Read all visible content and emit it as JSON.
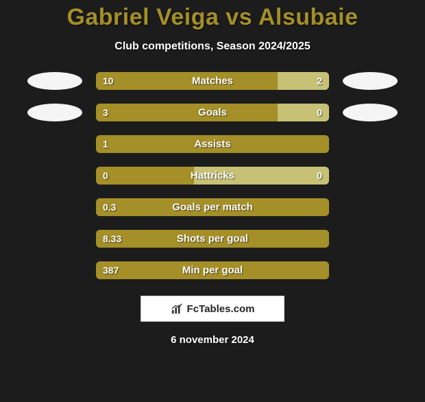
{
  "background_color": "#1c1c1c",
  "title": {
    "text": "Gabriel Veiga vs Alsubaie",
    "color": "#a48f28",
    "fontsize": 34,
    "fontweight": 800
  },
  "subtitle": {
    "text": "Club competitions, Season 2024/2025",
    "color": "#ffffff",
    "fontsize": 16
  },
  "bar_colors": {
    "left": "#a48f28",
    "right": "#c6c174"
  },
  "logo_color": "#f5f5f5",
  "stats": [
    {
      "label": "Matches",
      "left_value": "10",
      "right_value": "2",
      "left_pct": 78,
      "right_pct": 22,
      "show_logos": true,
      "show_right_value": true
    },
    {
      "label": "Goals",
      "left_value": "3",
      "right_value": "0",
      "left_pct": 78,
      "right_pct": 22,
      "show_logos": true,
      "show_right_value": true
    },
    {
      "label": "Assists",
      "left_value": "1",
      "right_value": "",
      "left_pct": 100,
      "right_pct": 0,
      "show_logos": false,
      "show_right_value": false
    },
    {
      "label": "Hattricks",
      "left_value": "0",
      "right_value": "0",
      "left_pct": 42,
      "right_pct": 58,
      "show_logos": false,
      "show_right_value": true
    },
    {
      "label": "Goals per match",
      "left_value": "0.3",
      "right_value": "",
      "left_pct": 100,
      "right_pct": 0,
      "show_logos": false,
      "show_right_value": false
    },
    {
      "label": "Shots per goal",
      "left_value": "8.33",
      "right_value": "",
      "left_pct": 100,
      "right_pct": 0,
      "show_logos": false,
      "show_right_value": false
    },
    {
      "label": "Min per goal",
      "left_value": "387",
      "right_value": "",
      "left_pct": 100,
      "right_pct": 0,
      "show_logos": false,
      "show_right_value": false
    }
  ],
  "brand": {
    "text": "FcTables.com",
    "background": "#ffffff",
    "text_color": "#222222",
    "border_color": "#cfcfcf"
  },
  "date": {
    "text": "6 november 2024",
    "color": "#ffffff",
    "fontsize": 15
  }
}
